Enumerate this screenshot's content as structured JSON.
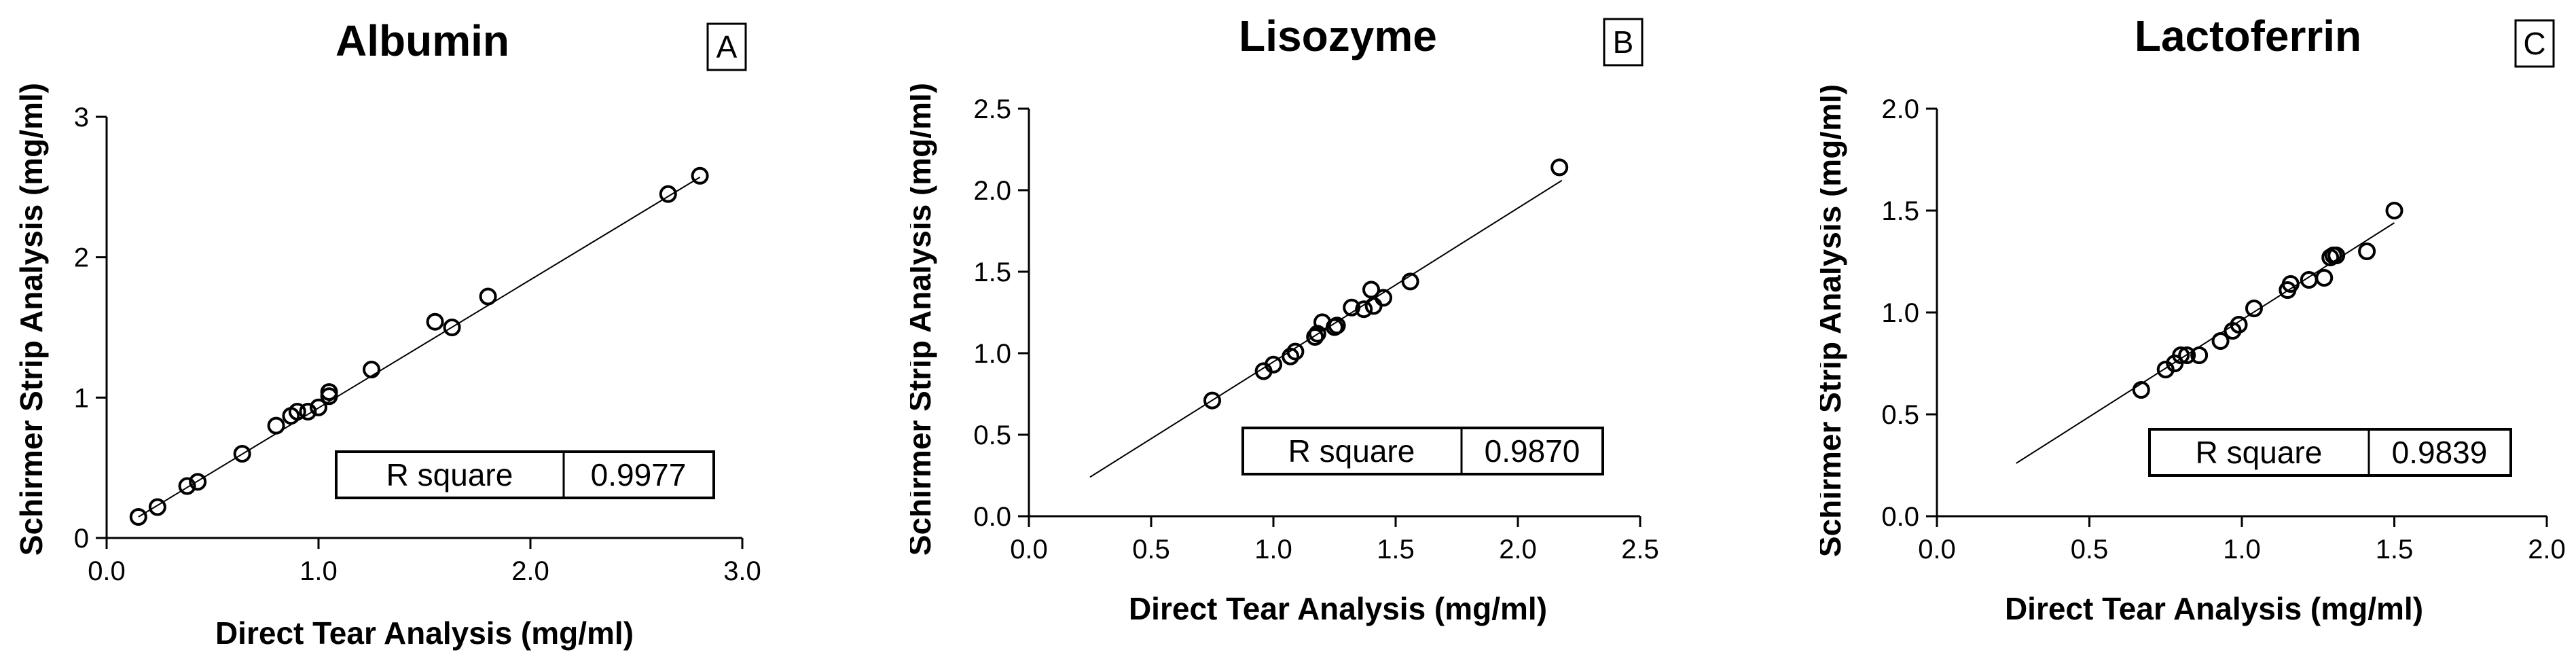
{
  "chart_data": [
    {
      "type": "scatter",
      "title": "Albumin",
      "panel_letter": "A",
      "xlabel": "Direct Tear Analysis (mg/ml)",
      "ylabel": "Schirmer Strip Analysis (mg/ml)",
      "xlim": [
        0,
        3
      ],
      "ylim": [
        0,
        3
      ],
      "xticks": [
        "0.0",
        "1.0",
        "2.0",
        "3.0"
      ],
      "xtick_values": [
        0,
        1,
        2,
        3
      ],
      "yticks": [
        "0",
        "1",
        "2",
        "3"
      ],
      "ytick_values": [
        0,
        1,
        2,
        3
      ],
      "r_square_label": "R square",
      "r_square_value": "0.9977",
      "fit_line": {
        "x": [
          0.15,
          2.8
        ],
        "y": [
          0.15,
          2.57
        ]
      },
      "points": {
        "x": [
          0.15,
          0.24,
          0.38,
          0.43,
          0.64,
          0.8,
          0.87,
          0.9,
          0.95,
          1.0,
          1.05,
          1.05,
          1.25,
          1.55,
          1.63,
          1.8,
          2.65,
          2.8
        ],
        "y": [
          0.15,
          0.22,
          0.37,
          0.4,
          0.6,
          0.8,
          0.87,
          0.9,
          0.9,
          0.93,
          1.01,
          1.04,
          1.2,
          1.54,
          1.5,
          1.72,
          2.45,
          2.58
        ]
      }
    },
    {
      "type": "scatter",
      "title": "Lisozyme",
      "panel_letter": "B",
      "xlabel": "Direct Tear Analysis (mg/ml)",
      "ylabel": "Schirmer Strip Analysis (mg/ml)",
      "xlim": [
        0,
        2.5
      ],
      "ylim": [
        0,
        2.5
      ],
      "xticks": [
        "0.0",
        "0.5",
        "1.0",
        "1.5",
        "2.0",
        "2.5"
      ],
      "xtick_values": [
        0,
        0.5,
        1,
        1.5,
        2,
        2.5
      ],
      "yticks": [
        "0.0",
        "0.5",
        "1.0",
        "1.5",
        "2.0",
        "2.5"
      ],
      "ytick_values": [
        0,
        0.5,
        1,
        1.5,
        2,
        2.5
      ],
      "r_square_label": "R square",
      "r_square_value": "0.9870",
      "fit_line": {
        "x": [
          0.25,
          2.18
        ],
        "y": [
          0.24,
          2.06
        ]
      },
      "points": {
        "x": [
          0.75,
          0.96,
          1.0,
          1.07,
          1.09,
          1.17,
          1.18,
          1.2,
          1.25,
          1.26,
          1.32,
          1.37,
          1.4,
          1.41,
          1.45,
          1.56,
          2.17
        ],
        "y": [
          0.71,
          0.89,
          0.93,
          0.98,
          1.01,
          1.1,
          1.12,
          1.19,
          1.16,
          1.17,
          1.28,
          1.27,
          1.39,
          1.29,
          1.34,
          1.44,
          2.14
        ]
      }
    },
    {
      "type": "scatter",
      "title": "Lactoferrin",
      "panel_letter": "C",
      "xlabel": "Direct Tear Analysis (mg/ml)",
      "ylabel": "Schirmer Strip Analysis (mg/ml)",
      "xlim": [
        0,
        2
      ],
      "ylim": [
        0,
        2
      ],
      "xticks": [
        "0.0",
        "0.5",
        "1.0",
        "1.5",
        "2.0"
      ],
      "xtick_values": [
        0,
        0.5,
        1,
        1.5,
        2
      ],
      "yticks": [
        "0.0",
        "0.5",
        "1.0",
        "1.5",
        "2.0"
      ],
      "ytick_values": [
        0,
        0.5,
        1,
        1.5,
        2
      ],
      "r_square_label": "R square",
      "r_square_value": "0.9839",
      "fit_line": {
        "x": [
          0.26,
          1.5
        ],
        "y": [
          0.26,
          1.44
        ]
      },
      "points": {
        "x": [
          0.67,
          0.75,
          0.78,
          0.8,
          0.82,
          0.86,
          0.93,
          0.97,
          0.99,
          1.04,
          1.15,
          1.16,
          1.22,
          1.27,
          1.29,
          1.3,
          1.31,
          1.41,
          1.5
        ],
        "y": [
          0.62,
          0.72,
          0.75,
          0.79,
          0.79,
          0.79,
          0.86,
          0.91,
          0.94,
          1.02,
          1.11,
          1.14,
          1.16,
          1.17,
          1.27,
          1.28,
          1.28,
          1.3,
          1.5
        ]
      }
    }
  ]
}
